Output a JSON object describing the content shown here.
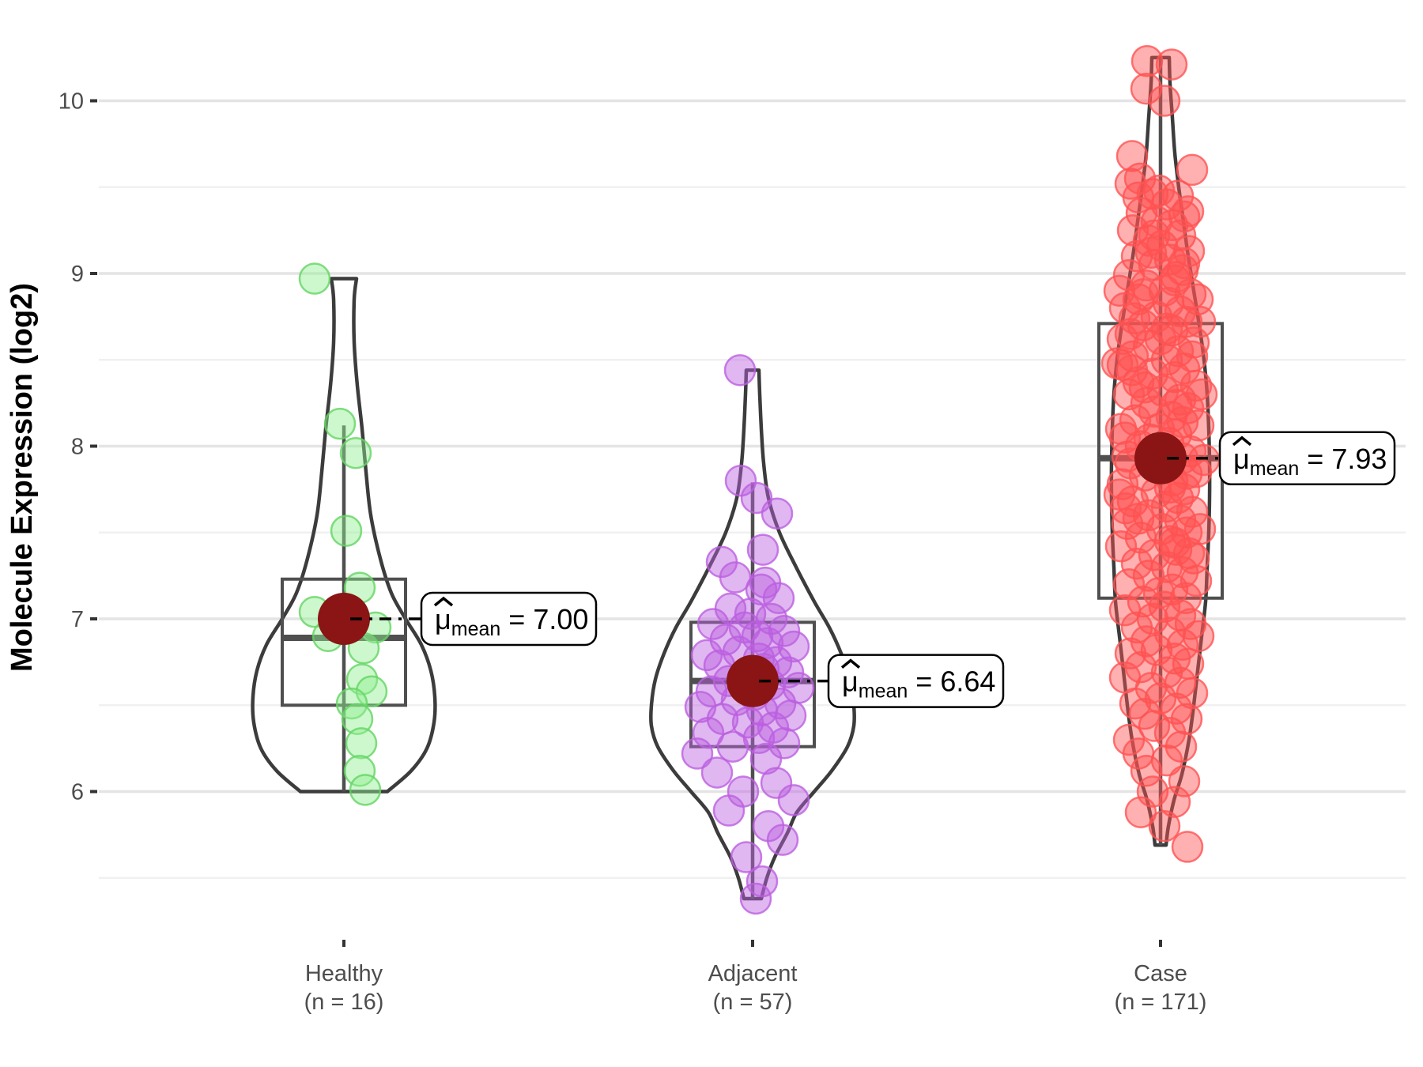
{
  "chart_data": {
    "type": "violin",
    "title": "",
    "ylabel": "Molecule Expression (log2)",
    "xlabel": "",
    "ylim": [
      5.14,
      10.49
    ],
    "yticks": [
      6,
      7,
      8,
      9,
      10
    ],
    "yticks_minor": [
      5.5,
      6.5,
      7.5,
      8.5,
      9.5
    ],
    "grid": "major+minor",
    "legend": "none",
    "mean_symbol": {
      "mu": "μ",
      "hat": "ˆ",
      "subscript": "mean"
    },
    "colors": {
      "violin_outline": "#3C3C3C",
      "box_stroke": "#4F4F4F",
      "mean_dot": "#8B1414",
      "grid_major": "#E4E4E4",
      "grid_minor": "#F0F0F0",
      "tick_text": "#4D4D4D",
      "axis_title": "#000000",
      "label_box_stroke": "#000000",
      "label_box_fill": "#FFFFFF"
    },
    "groups": [
      {
        "label": "Healthy",
        "sublabel": "(n = 16)",
        "n": 16,
        "point_color": "#90EE90",
        "point_stroke": "#63D463",
        "mean": 7.0,
        "mean_label_value": "= 7.00",
        "median": 6.89,
        "q1": 6.5,
        "q3": 7.23,
        "whisker_low": 6.0,
        "whisker_high": 8.12,
        "violin_profile": [
          [
            8.97,
            16
          ],
          [
            8.85,
            13
          ],
          [
            8.6,
            13
          ],
          [
            8.35,
            17
          ],
          [
            8.1,
            23
          ],
          [
            7.85,
            28
          ],
          [
            7.6,
            34
          ],
          [
            7.35,
            46
          ],
          [
            7.15,
            60
          ],
          [
            7.0,
            78
          ],
          [
            6.85,
            98
          ],
          [
            6.7,
            110
          ],
          [
            6.55,
            115
          ],
          [
            6.4,
            114
          ],
          [
            6.25,
            105
          ],
          [
            6.12,
            85
          ],
          [
            6.0,
            55
          ]
        ],
        "points": [
          [
            -37,
            8.97
          ],
          [
            -5,
            8.13
          ],
          [
            15,
            7.96
          ],
          [
            3,
            7.51
          ],
          [
            20,
            7.18
          ],
          [
            -37,
            7.04
          ],
          [
            40,
            6.95
          ],
          [
            -20,
            6.9
          ],
          [
            25,
            6.83
          ],
          [
            23,
            6.65
          ],
          [
            35,
            6.58
          ],
          [
            10,
            6.51
          ],
          [
            17,
            6.42
          ],
          [
            22,
            6.28
          ],
          [
            20,
            6.12
          ],
          [
            27,
            6.01
          ]
        ]
      },
      {
        "label": "Adjacent",
        "sublabel": "(n = 57)",
        "n": 57,
        "point_color": "#BB5FE0",
        "point_stroke": "#BB5FE0",
        "mean": 6.64,
        "mean_label_value": "= 6.64",
        "median": 6.64,
        "q1": 6.26,
        "q3": 6.98,
        "whisker_low": 5.38,
        "whisker_high": 7.79,
        "violin_profile": [
          [
            8.44,
            8
          ],
          [
            8.3,
            9
          ],
          [
            8.1,
            11
          ],
          [
            7.9,
            14
          ],
          [
            7.7,
            20
          ],
          [
            7.5,
            34
          ],
          [
            7.3,
            55
          ],
          [
            7.1,
            78
          ],
          [
            6.95,
            97
          ],
          [
            6.8,
            112
          ],
          [
            6.65,
            123
          ],
          [
            6.5,
            128
          ],
          [
            6.38,
            128
          ],
          [
            6.26,
            120
          ],
          [
            6.12,
            100
          ],
          [
            6.0,
            78
          ],
          [
            5.88,
            56
          ],
          [
            5.76,
            44
          ],
          [
            5.62,
            28
          ],
          [
            5.5,
            18
          ],
          [
            5.38,
            11
          ]
        ],
        "points": [
          [
            -16,
            8.44
          ],
          [
            -15,
            7.8
          ],
          [
            5,
            7.7
          ],
          [
            31,
            7.61
          ],
          [
            13,
            7.4
          ],
          [
            -39,
            7.33
          ],
          [
            -22,
            7.24
          ],
          [
            16,
            7.21
          ],
          [
            11,
            7.17
          ],
          [
            33,
            7.12
          ],
          [
            -28,
            7.06
          ],
          [
            -3,
            7.03
          ],
          [
            24,
            7.0
          ],
          [
            -50,
            6.97
          ],
          [
            -10,
            6.95
          ],
          [
            40,
            6.93
          ],
          [
            6,
            6.9
          ],
          [
            -34,
            6.88
          ],
          [
            19,
            6.86
          ],
          [
            52,
            6.84
          ],
          [
            -18,
            6.81
          ],
          [
            -58,
            6.79
          ],
          [
            8,
            6.77
          ],
          [
            30,
            6.75
          ],
          [
            -42,
            6.73
          ],
          [
            14,
            6.71
          ],
          [
            45,
            6.69
          ],
          [
            -8,
            6.67
          ],
          [
            -30,
            6.64
          ],
          [
            22,
            6.62
          ],
          [
            58,
            6.6
          ],
          [
            -52,
            6.58
          ],
          [
            2,
            6.56
          ],
          [
            -20,
            6.53
          ],
          [
            35,
            6.51
          ],
          [
            -66,
            6.49
          ],
          [
            12,
            6.47
          ],
          [
            48,
            6.44
          ],
          [
            -38,
            6.42
          ],
          [
            -6,
            6.4
          ],
          [
            26,
            6.37
          ],
          [
            -56,
            6.34
          ],
          [
            8,
            6.31
          ],
          [
            40,
            6.28
          ],
          [
            -25,
            6.26
          ],
          [
            -70,
            6.22
          ],
          [
            17,
            6.19
          ],
          [
            -45,
            6.11
          ],
          [
            30,
            6.05
          ],
          [
            -12,
            6.0
          ],
          [
            52,
            5.95
          ],
          [
            -30,
            5.89
          ],
          [
            20,
            5.8
          ],
          [
            38,
            5.72
          ],
          [
            -8,
            5.62
          ],
          [
            12,
            5.48
          ],
          [
            4,
            5.38
          ]
        ]
      },
      {
        "label": "Case",
        "sublabel": "(n = 171)",
        "n": 171,
        "point_color": "#FF5252",
        "point_stroke": "#FF5252",
        "mean": 7.93,
        "mean_label_value": "= 7.93",
        "median": 7.93,
        "q1": 7.12,
        "q3": 8.71,
        "whisker_low": 5.69,
        "whisker_high": 10.25,
        "violin_profile": [
          [
            10.25,
            11
          ],
          [
            10.1,
            12
          ],
          [
            9.9,
            15
          ],
          [
            9.7,
            18
          ],
          [
            9.5,
            23
          ],
          [
            9.3,
            29
          ],
          [
            9.1,
            35
          ],
          [
            8.9,
            42
          ],
          [
            8.7,
            49
          ],
          [
            8.5,
            55
          ],
          [
            8.3,
            59
          ],
          [
            8.1,
            61
          ],
          [
            7.9,
            62
          ],
          [
            7.7,
            62
          ],
          [
            7.5,
            61
          ],
          [
            7.3,
            59
          ],
          [
            7.1,
            57
          ],
          [
            6.9,
            52
          ],
          [
            6.7,
            47
          ],
          [
            6.5,
            42
          ],
          [
            6.3,
            36
          ],
          [
            6.1,
            27
          ],
          [
            5.95,
            17
          ],
          [
            5.8,
            10
          ],
          [
            5.69,
            7
          ]
        ],
        "points": [
          [
            -17,
            10.23
          ],
          [
            14,
            10.21
          ],
          [
            -18,
            10.07
          ],
          [
            5,
            10.0
          ],
          [
            -36,
            9.68
          ],
          [
            40,
            9.6
          ],
          [
            -38,
            9.52
          ],
          [
            -28,
            9.44
          ],
          [
            -10,
            9.46
          ],
          [
            22,
            9.45
          ],
          [
            8,
            9.4
          ],
          [
            -24,
            9.35
          ],
          [
            30,
            9.33
          ],
          [
            -5,
            9.3
          ],
          [
            15,
            9.28
          ],
          [
            -35,
            9.25
          ],
          [
            25,
            9.22
          ],
          [
            -15,
            9.19
          ],
          [
            2,
            9.16
          ],
          [
            36,
            9.13
          ],
          [
            -30,
            9.1
          ],
          [
            12,
            9.08
          ],
          [
            -8,
            9.05
          ],
          [
            28,
            9.02
          ],
          [
            -40,
            8.99
          ],
          [
            18,
            8.96
          ],
          [
            -18,
            8.93
          ],
          [
            5,
            8.9
          ],
          [
            38,
            8.88
          ],
          [
            -28,
            8.85
          ],
          [
            10,
            8.83
          ],
          [
            -45,
            8.8
          ],
          [
            25,
            8.78
          ],
          [
            -5,
            8.75
          ],
          [
            33,
            8.72
          ],
          [
            -22,
            8.7
          ],
          [
            15,
            8.67
          ],
          [
            -38,
            8.65
          ],
          [
            0,
            8.62
          ],
          [
            42,
            8.6
          ],
          [
            -15,
            8.58
          ],
          [
            22,
            8.55
          ],
          [
            -35,
            8.52
          ],
          [
            8,
            8.5
          ],
          [
            -48,
            8.47
          ],
          [
            30,
            8.45
          ],
          [
            -10,
            8.42
          ],
          [
            18,
            8.4
          ],
          [
            -28,
            8.37
          ],
          [
            45,
            8.35
          ],
          [
            3,
            8.32
          ],
          [
            -40,
            8.3
          ],
          [
            25,
            8.27
          ],
          [
            -18,
            8.25
          ],
          [
            35,
            8.22
          ],
          [
            -8,
            8.2
          ],
          [
            14,
            8.17
          ],
          [
            -32,
            8.15
          ],
          [
            48,
            8.12
          ],
          [
            -2,
            8.1
          ],
          [
            20,
            8.07
          ],
          [
            -45,
            8.05
          ],
          [
            10,
            8.02
          ],
          [
            -25,
            8.0
          ],
          [
            38,
            7.97
          ],
          [
            -12,
            7.95
          ],
          [
            28,
            7.93
          ],
          [
            -38,
            7.9
          ],
          [
            5,
            7.88
          ],
          [
            45,
            7.85
          ],
          [
            -20,
            7.83
          ],
          [
            15,
            7.8
          ],
          [
            -48,
            7.78
          ],
          [
            30,
            7.75
          ],
          [
            -5,
            7.73
          ],
          [
            22,
            7.7
          ],
          [
            -35,
            7.68
          ],
          [
            8,
            7.65
          ],
          [
            40,
            7.62
          ],
          [
            -15,
            7.6
          ],
          [
            25,
            7.57
          ],
          [
            -42,
            7.55
          ],
          [
            2,
            7.52
          ],
          [
            33,
            7.5
          ],
          [
            -25,
            7.47
          ],
          [
            12,
            7.45
          ],
          [
            -50,
            7.42
          ],
          [
            20,
            7.4
          ],
          [
            -8,
            7.37
          ],
          [
            42,
            7.35
          ],
          [
            -30,
            7.32
          ],
          [
            8,
            7.3
          ],
          [
            28,
            7.27
          ],
          [
            -15,
            7.25
          ],
          [
            45,
            7.22
          ],
          [
            -40,
            7.2
          ],
          [
            15,
            7.17
          ],
          [
            -2,
            7.15
          ],
          [
            32,
            7.12
          ],
          [
            -22,
            7.1
          ],
          [
            5,
            7.07
          ],
          [
            -45,
            7.05
          ],
          [
            25,
            7.02
          ],
          [
            -10,
            7.0
          ],
          [
            38,
            6.97
          ],
          [
            -30,
            6.95
          ],
          [
            12,
            6.92
          ],
          [
            48,
            6.9
          ],
          [
            -18,
            6.87
          ],
          [
            28,
            6.85
          ],
          [
            -5,
            6.82
          ],
          [
            -38,
            6.8
          ],
          [
            18,
            6.77
          ],
          [
            35,
            6.74
          ],
          [
            -25,
            6.72
          ],
          [
            8,
            6.69
          ],
          [
            -45,
            6.66
          ],
          [
            25,
            6.63
          ],
          [
            -12,
            6.6
          ],
          [
            40,
            6.57
          ],
          [
            0,
            6.54
          ],
          [
            -32,
            6.51
          ],
          [
            20,
            6.48
          ],
          [
            -20,
            6.45
          ],
          [
            33,
            6.42
          ],
          [
            -8,
            6.38
          ],
          [
            12,
            6.34
          ],
          [
            -40,
            6.3
          ],
          [
            26,
            6.26
          ],
          [
            -28,
            6.22
          ],
          [
            8,
            6.18
          ],
          [
            -18,
            6.12
          ],
          [
            30,
            6.06
          ],
          [
            -10,
            6.0
          ],
          [
            18,
            5.94
          ],
          [
            -25,
            5.88
          ],
          [
            5,
            5.8
          ],
          [
            34,
            5.68
          ],
          [
            -52,
            8.9
          ],
          [
            50,
            8.72
          ],
          [
            -55,
            8.48
          ],
          [
            52,
            8.3
          ],
          [
            -50,
            8.1
          ],
          [
            55,
            7.92
          ],
          [
            -52,
            7.72
          ],
          [
            50,
            7.52
          ],
          [
            -48,
            8.62
          ],
          [
            47,
            8.85
          ],
          [
            -12,
            9.12
          ],
          [
            20,
            8.98
          ],
          [
            -33,
            8.74
          ],
          [
            40,
            8.52
          ],
          [
            -20,
            8.34
          ],
          [
            28,
            8.14
          ],
          [
            -42,
            7.94
          ],
          [
            12,
            7.76
          ],
          [
            -28,
            7.58
          ],
          [
            36,
            7.38
          ],
          [
            -8,
            9.22
          ],
          [
            30,
            9.06
          ],
          [
            -22,
            8.88
          ],
          [
            8,
            8.68
          ],
          [
            -36,
            8.44
          ],
          [
            20,
            8.24
          ],
          [
            -14,
            8.04
          ],
          [
            33,
            7.84
          ],
          [
            -44,
            7.64
          ],
          [
            18,
            7.44
          ],
          [
            -26,
            9.55
          ],
          [
            35,
            9.36
          ],
          [
            -2,
            9.48
          ]
        ]
      }
    ]
  }
}
